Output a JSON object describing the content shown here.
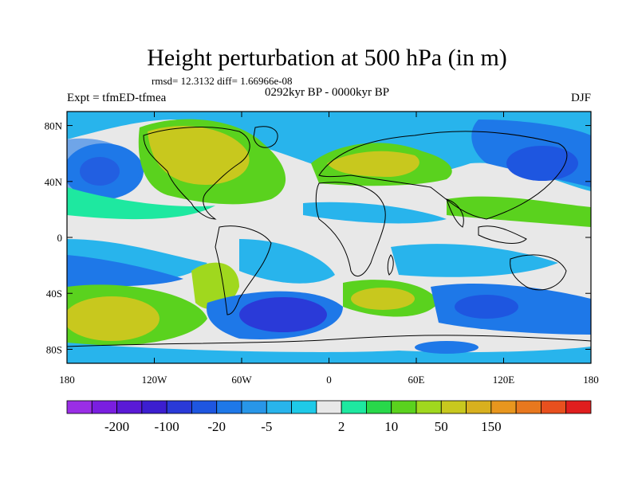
{
  "title": "Height perturbation at 500 hPa (in m)",
  "stats": "rmsd= 12.3132 diff= 1.66966e-08",
  "experiment": "Expt = tfmED-tfmea",
  "period": "0292kyr BP - 0000kyr BP",
  "season": "DJF",
  "chart_data": {
    "type": "heatmap",
    "projection": "cylindrical-equidistant",
    "x_range": [
      -180,
      180
    ],
    "y_range": [
      -90,
      90
    ],
    "x_ticks": [
      "180",
      "120W",
      "60W",
      "0",
      "60E",
      "120E",
      "180"
    ],
    "y_ticks": [
      "80N",
      "40N",
      "0",
      "40S",
      "80S"
    ],
    "colorbar": {
      "colors": [
        "#9a2ee6",
        "#7a1ee0",
        "#5a1ad6",
        "#3c1ed0",
        "#2a3ad8",
        "#1e56e0",
        "#1e78e8",
        "#2896e8",
        "#28b4ec",
        "#1ecae8",
        "#e8e8e8",
        "#1ee8a0",
        "#28d84a",
        "#5ad21e",
        "#a0d81e",
        "#c8c81e",
        "#d8b01e",
        "#e8961e",
        "#e8781e",
        "#e8501e",
        "#e01e1e"
      ],
      "labels": [
        "-200",
        "-100",
        "-20",
        "-5",
        "2",
        "10",
        "50",
        "150"
      ]
    }
  }
}
